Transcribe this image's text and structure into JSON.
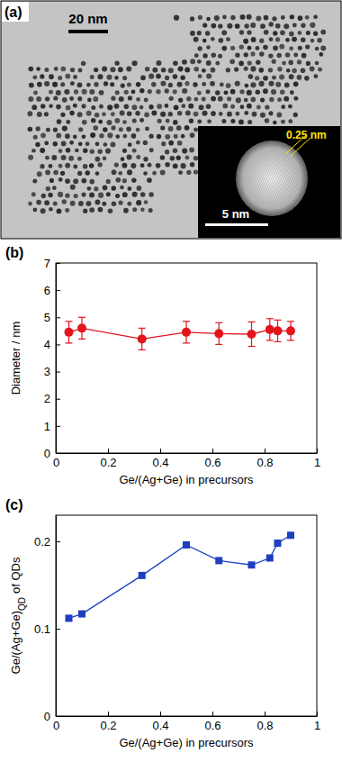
{
  "image_panel": {
    "label": "(a)",
    "scale_bar": "20 nm",
    "inset_scale_bar": "5 nm",
    "lattice_spacing": "0.25 nm"
  },
  "chart_data": [
    {
      "type": "line",
      "title": "(b)",
      "xlabel": "Ge/(Ag+Ge) in precursors",
      "ylabel": "Diameter / nm",
      "x": [
        0.05,
        0.1,
        0.33,
        0.5,
        0.625,
        0.75,
        0.82,
        0.85,
        0.9
      ],
      "values": [
        4.45,
        4.6,
        4.2,
        4.45,
        4.4,
        4.38,
        4.55,
        4.5,
        4.5
      ],
      "error": [
        0.4,
        0.4,
        0.4,
        0.4,
        0.4,
        0.45,
        0.4,
        0.4,
        0.35
      ],
      "color": "#e3141c",
      "marker": "circle",
      "xlim": [
        0,
        1
      ],
      "xticks": [
        0,
        0.2,
        0.4,
        0.6,
        0.8,
        1
      ],
      "ylim": [
        0,
        7
      ],
      "yticks": [
        0,
        1,
        2,
        3,
        4,
        5,
        6,
        7
      ]
    },
    {
      "type": "line",
      "title": "(c)",
      "xlabel": "Ge/(Ag+Ge) in precursors",
      "ylabel": [
        "Ge/(Ag+Ge)",
        "QD",
        "of QDs"
      ],
      "x": [
        0.05,
        0.1,
        0.33,
        0.5,
        0.625,
        0.75,
        0.82,
        0.85,
        0.9
      ],
      "values": [
        0.112,
        0.117,
        0.161,
        0.196,
        0.178,
        0.173,
        0.181,
        0.198,
        0.207
      ],
      "color": "#1f3fbf",
      "marker": "square",
      "xlim": [
        0,
        1
      ],
      "xticks": [
        0,
        0.2,
        0.4,
        0.6,
        0.8,
        1
      ],
      "ylim": [
        0,
        0.23
      ],
      "yticks": [
        0,
        0.1,
        0.2
      ]
    }
  ]
}
